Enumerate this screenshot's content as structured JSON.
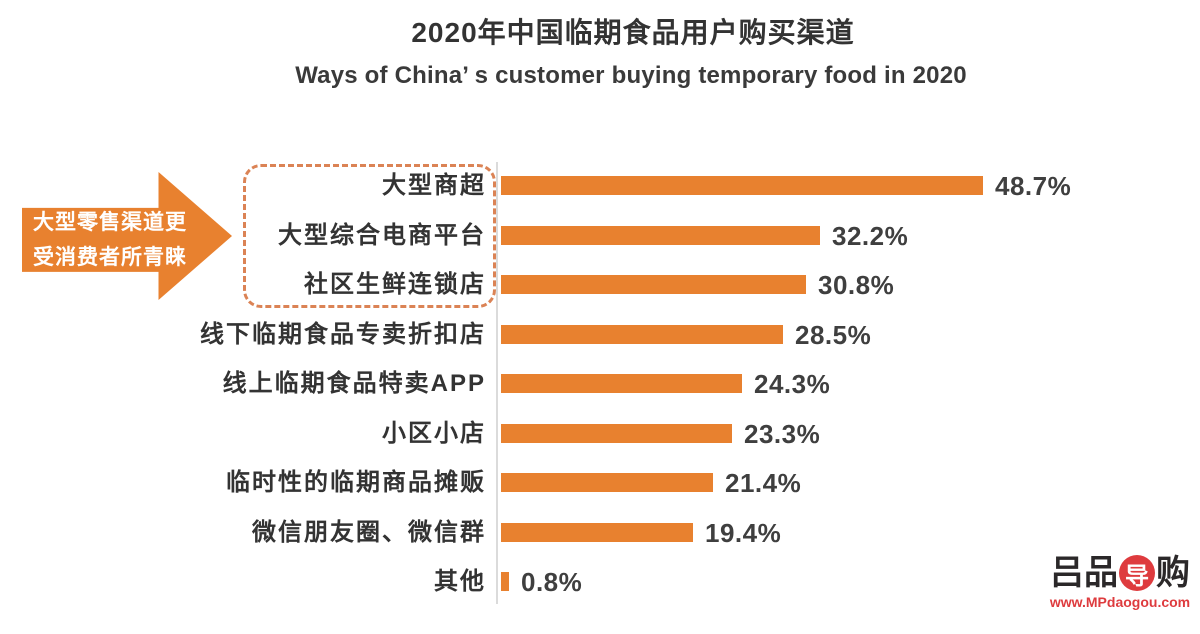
{
  "header": {
    "title": "2020年中国临期食品用户购买渠道",
    "subtitle": "Ways of China’ s customer buying temporary food in 2020"
  },
  "callout": {
    "line1": "大型零售渠道更",
    "line2": "受消费者所青睐"
  },
  "chart_data": {
    "type": "bar",
    "orientation": "horizontal",
    "title": "2020年中国临期食品用户购买渠道",
    "subtitle": "Ways of China’ s customer buying temporary food in 2020",
    "categories": [
      "大型商超",
      "大型综合电商平台",
      "社区生鲜连锁店",
      "线下临期食品专卖折扣店",
      "线上临期食品特卖APP",
      "小区小店",
      "临时性的临期商品摊贩",
      "微信朋友圈、微信群",
      "其他"
    ],
    "values": [
      48.7,
      32.2,
      30.8,
      28.5,
      24.3,
      23.3,
      21.4,
      19.4,
      0.8
    ],
    "value_suffix": "%",
    "xlabel": "",
    "ylabel": "",
    "xlim": [
      0,
      50
    ],
    "grid": false,
    "legend": false,
    "value_labels_shown": true,
    "highlight": {
      "categories": [
        "大型商超",
        "大型综合电商平台",
        "社区生鲜连锁店"
      ],
      "style": "dashed-rounded-box",
      "annotation": "大型零售渠道更受消费者所青睐"
    }
  },
  "watermark": {
    "logo_prefix": "吕品",
    "logo_seal_char": "导",
    "logo_suffix": "购",
    "url": "www.MPdaogou.com"
  },
  "colors": {
    "background": "#FFFFFF",
    "bar": "#E8812F",
    "arrow": "#E8812F",
    "callout_text": "#FFFFFF",
    "dashed_box_border": "#DB8355",
    "axis_line": "#DBDBDB",
    "title_text": "#333333",
    "subtitle_text": "#3A3A3A",
    "label_text": "#333333",
    "value_text": "#3F3F3F",
    "watermark_red": "#DE3B3E",
    "watermark_black": "#2B2829"
  }
}
